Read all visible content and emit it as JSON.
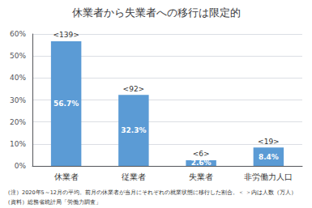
{
  "chart_data": {
    "type": "bar",
    "title": "休業者から失業者への移行は限定的",
    "categories": [
      "休業者",
      "従業者",
      "失業者",
      "非労働力人口"
    ],
    "values": [
      56.7,
      32.3,
      2.6,
      8.4
    ],
    "value_labels": [
      "56.7%",
      "32.3%",
      "2.6%",
      "8.4%"
    ],
    "data_labels": true,
    "count_labels": [
      "<139>",
      "<92>",
      "<6>",
      "<19>"
    ],
    "color": "#5B9BD5",
    "ylim": [
      0,
      60
    ],
    "yticks": [
      {
        "value": 0,
        "label": "0%"
      },
      {
        "value": 10,
        "label": "10%"
      },
      {
        "value": 20,
        "label": "20%"
      },
      {
        "value": 30,
        "label": "30%"
      },
      {
        "value": 40,
        "label": "40%"
      },
      {
        "value": 50,
        "label": "50%"
      },
      {
        "value": 60,
        "label": "60%"
      }
    ],
    "grid": true,
    "notes": [
      "（注）2020年5～12月の平均。前月の休業者が当月にそれぞれの就業状態に移行した割合。＜ ＞内は人数（万人）",
      "（資料）総務省統計局「労働力調査」"
    ]
  }
}
